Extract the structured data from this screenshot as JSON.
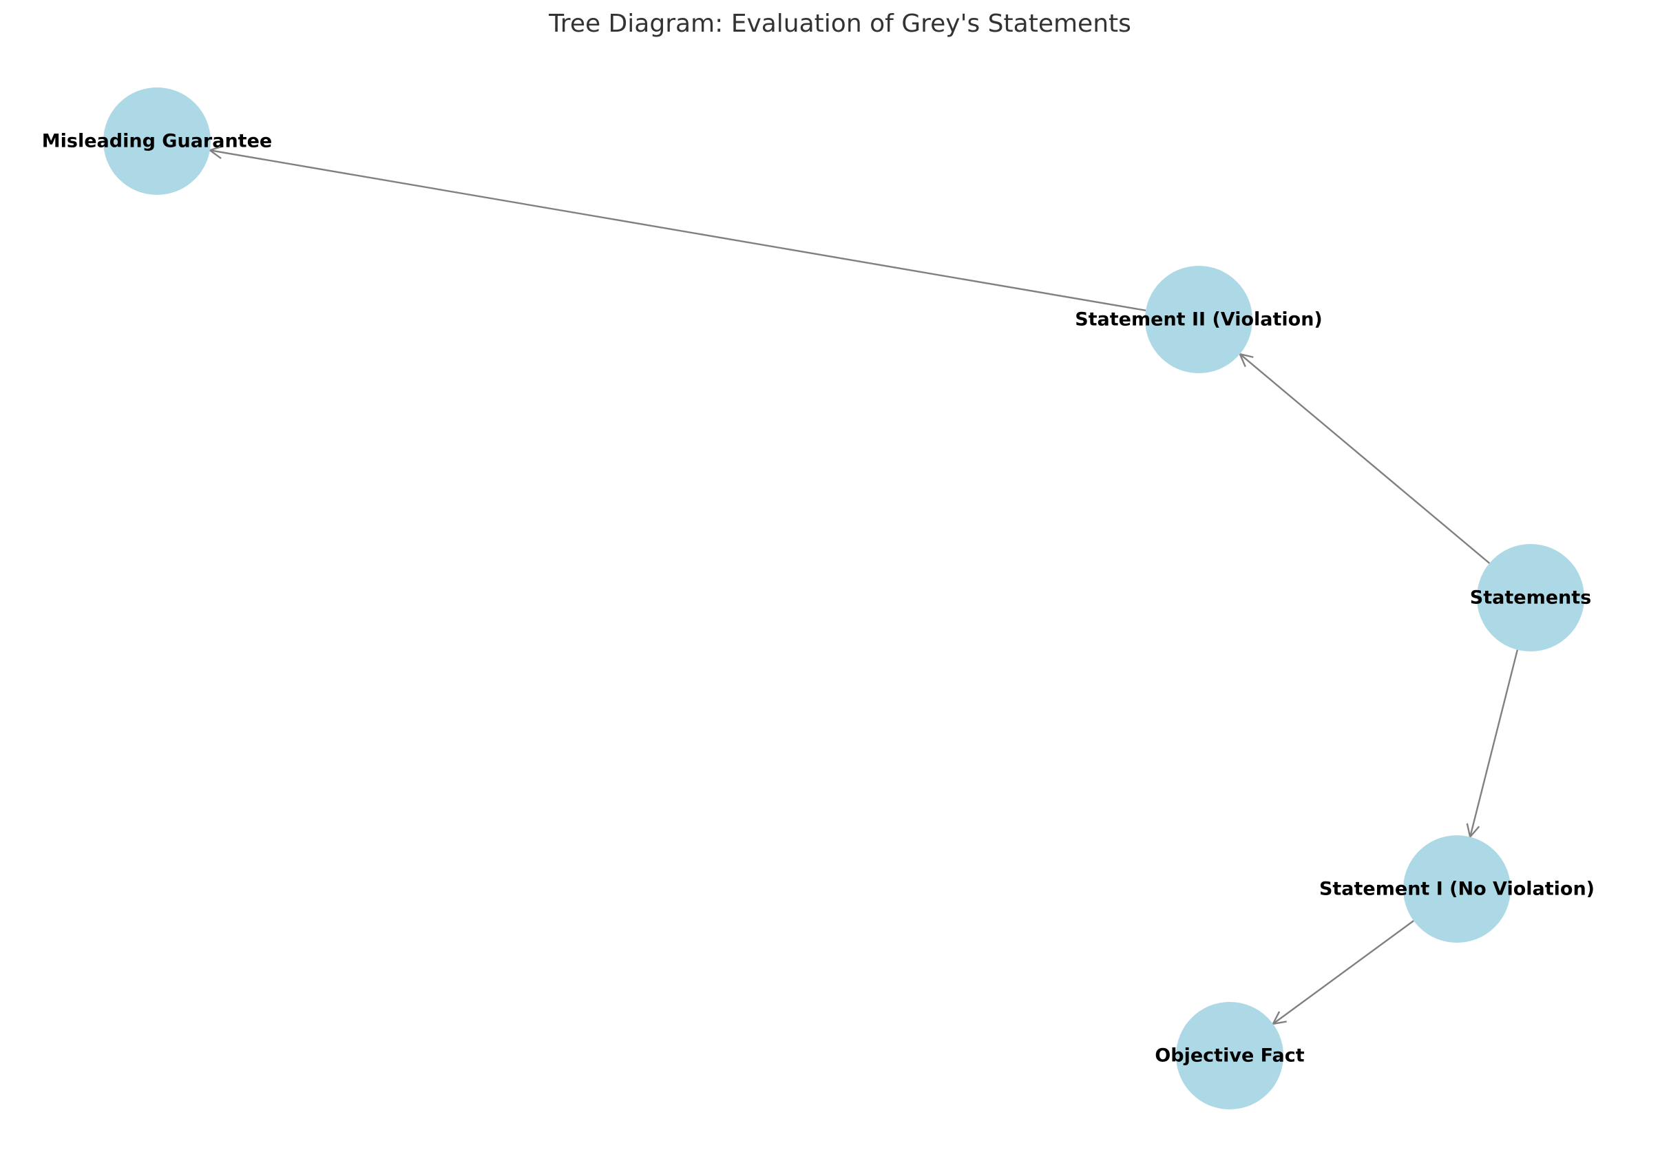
{
  "title": "Tree Diagram: Evaluation of Grey's Statements",
  "colors": {
    "node_fill": "#add8e6",
    "edge_stroke": "#808080",
    "label_color": "#000000",
    "title_color": "#333333"
  },
  "nodes": [
    {
      "id": "statements",
      "label": "Statements"
    },
    {
      "id": "statement-ii",
      "label": "Statement II (Violation)"
    },
    {
      "id": "misleading-guarantee",
      "label": "Misleading Guarantee"
    },
    {
      "id": "statement-i",
      "label": "Statement I (No Violation)"
    },
    {
      "id": "objective-fact",
      "label": "Objective Fact"
    }
  ],
  "edges": [
    {
      "from": "statements",
      "to": "statement-ii"
    },
    {
      "from": "statement-ii",
      "to": "misleading-guarantee"
    },
    {
      "from": "statements",
      "to": "statement-i"
    },
    {
      "from": "statement-i",
      "to": "objective-fact"
    }
  ]
}
